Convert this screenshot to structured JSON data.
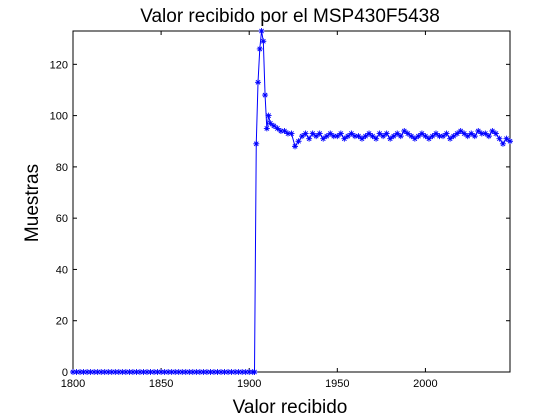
{
  "chart_data": {
    "type": "line",
    "title": "Valor recibido por el MSP430F5438",
    "xlabel": "Valor recibido",
    "ylabel": "Muestras",
    "xlim": [
      1800,
      2048
    ],
    "ylim": [
      0,
      133
    ],
    "xticks": [
      1800,
      1850,
      1900,
      1950,
      2000
    ],
    "yticks": [
      0,
      20,
      40,
      60,
      80,
      100,
      120
    ],
    "grid": false,
    "marker": "asterisk",
    "colors": {
      "series": "#0000ff",
      "axes": "#000000",
      "background": "#ffffff"
    },
    "series": [
      {
        "x": [
          1800,
          1802,
          1804,
          1806,
          1808,
          1810,
          1812,
          1814,
          1816,
          1818,
          1820,
          1822,
          1824,
          1826,
          1828,
          1830,
          1832,
          1834,
          1836,
          1838,
          1840,
          1842,
          1844,
          1846,
          1848,
          1850,
          1852,
          1854,
          1856,
          1858,
          1860,
          1862,
          1864,
          1866,
          1868,
          1870,
          1872,
          1874,
          1876,
          1878,
          1880,
          1882,
          1884,
          1886,
          1888,
          1890,
          1892,
          1894,
          1896,
          1898,
          1900,
          1902,
          1903,
          1904,
          1905,
          1906,
          1907,
          1908,
          1909,
          1910,
          1911,
          1912,
          1914,
          1916,
          1918,
          1920,
          1922,
          1924,
          1926,
          1928,
          1930,
          1932,
          1934,
          1936,
          1938,
          1940,
          1942,
          1944,
          1946,
          1948,
          1950,
          1952,
          1954,
          1956,
          1958,
          1960,
          1962,
          1964,
          1966,
          1968,
          1970,
          1972,
          1974,
          1976,
          1978,
          1980,
          1982,
          1984,
          1986,
          1988,
          1990,
          1992,
          1994,
          1996,
          1998,
          2000,
          2002,
          2004,
          2006,
          2008,
          2010,
          2012,
          2014,
          2016,
          2018,
          2020,
          2022,
          2024,
          2026,
          2028,
          2030,
          2032,
          2034,
          2036,
          2038,
          2040,
          2042,
          2044,
          2046,
          2048
        ],
        "y": [
          0,
          0,
          0,
          0,
          0,
          0,
          0,
          0,
          0,
          0,
          0,
          0,
          0,
          0,
          0,
          0,
          0,
          0,
          0,
          0,
          0,
          0,
          0,
          0,
          0,
          0,
          0,
          0,
          0,
          0,
          0,
          0,
          0,
          0,
          0,
          0,
          0,
          0,
          0,
          0,
          0,
          0,
          0,
          0,
          0,
          0,
          0,
          0,
          0,
          0,
          0,
          0,
          0,
          89,
          113,
          126,
          133,
          129,
          108,
          95,
          100,
          97,
          96,
          95,
          94,
          94,
          93,
          93,
          88,
          90,
          92,
          93,
          91,
          93,
          92,
          93,
          91,
          92,
          93,
          92,
          92,
          93,
          91,
          92,
          93,
          92,
          92,
          91,
          92,
          93,
          92,
          91,
          93,
          92,
          93,
          91,
          92,
          93,
          92,
          94,
          93,
          92,
          91,
          92,
          93,
          92,
          91,
          92,
          93,
          92,
          92,
          93,
          91,
          92,
          93,
          94,
          93,
          92,
          93,
          92,
          94,
          93,
          93,
          92,
          94,
          93,
          91,
          89,
          91,
          90
        ]
      }
    ]
  }
}
